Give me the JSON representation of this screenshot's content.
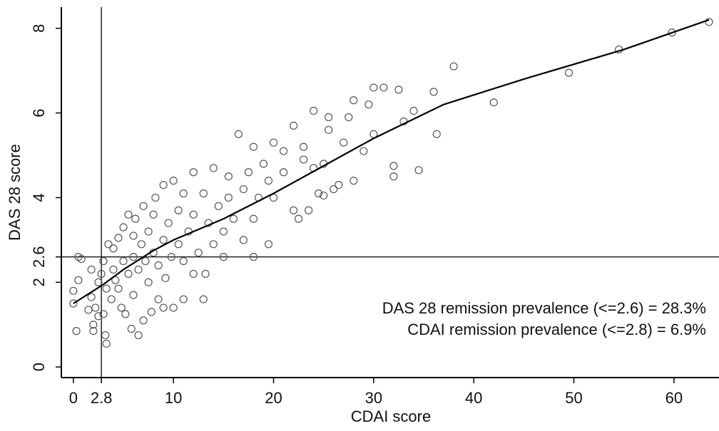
{
  "chart_data": {
    "type": "scatter",
    "x_label": "CDAI score",
    "y_label": "DAS 28 score",
    "annotations": [
      "DAS 28 remission prevalence (<=2.6) = 28.3%",
      "CDAI remission prevalence (<=2.8) = 6.9%"
    ],
    "x": [
      0,
      0,
      0.3,
      0.5,
      0.5,
      0.8,
      1.5,
      1.8,
      1.8,
      2,
      2,
      2.2,
      2.5,
      2.5,
      2.8,
      3,
      3,
      3.2,
      3.3,
      3.3,
      3.5,
      3.8,
      4,
      4,
      4.2,
      4.5,
      4.5,
      4.8,
      5,
      5,
      5.2,
      5.5,
      5.5,
      5.8,
      6,
      6,
      6,
      6.2,
      6.5,
      6.5,
      6.8,
      7,
      7,
      7.2,
      7.5,
      7.5,
      7.8,
      8,
      8,
      8.2,
      8.5,
      8.5,
      9,
      9,
      9,
      9.2,
      9.5,
      9.8,
      10,
      10,
      10.5,
      10.5,
      11,
      11,
      11,
      11.5,
      12,
      12,
      12,
      12.5,
      13,
      13,
      13.2,
      13.5,
      14,
      14,
      14.5,
      15,
      15,
      15.5,
      15.5,
      16,
      16.5,
      17,
      17,
      17.5,
      18,
      18,
      18,
      18.5,
      19,
      19.5,
      19.5,
      20,
      20,
      21,
      21,
      22,
      22,
      22.5,
      23,
      23,
      23.5,
      24,
      24,
      24.5,
      25,
      25,
      25.5,
      25.5,
      26,
      26.5,
      27,
      27.5,
      28,
      28,
      29,
      29.5,
      30,
      30,
      31,
      32,
      32,
      32.5,
      33,
      34,
      34.5,
      36,
      36.3,
      38,
      42,
      49.5,
      54.5,
      59.8,
      63.5
    ],
    "y": [
      1.5,
      1.8,
      0.85,
      2.05,
      2.6,
      2.55,
      1.35,
      1.65,
      2.3,
      0.85,
      1.0,
      1.4,
      1.2,
      2.0,
      2.2,
      1.25,
      2.5,
      0.75,
      0.55,
      1.85,
      2.9,
      1.6,
      2.3,
      2.8,
      2.05,
      1.85,
      3.05,
      1.4,
      2.5,
      3.3,
      1.25,
      2.2,
      3.6,
      0.9,
      1.7,
      2.6,
      3.1,
      3.5,
      0.75,
      2.3,
      2.9,
      1.1,
      3.8,
      2.5,
      2.0,
      3.2,
      1.3,
      2.7,
      3.6,
      4.0,
      1.6,
      2.4,
      1.4,
      3.0,
      4.3,
      2.1,
      3.4,
      2.6,
      4.4,
      1.4,
      2.9,
      3.7,
      1.6,
      2.5,
      4.1,
      3.2,
      2.2,
      4.6,
      3.6,
      2.7,
      1.6,
      4.1,
      2.2,
      3.4,
      4.7,
      2.9,
      3.8,
      3.2,
      2.6,
      4.5,
      4.0,
      3.5,
      5.5,
      4.2,
      3.0,
      4.6,
      5.2,
      3.5,
      2.6,
      4.0,
      4.8,
      2.9,
      4.4,
      5.3,
      4.0,
      5.1,
      4.6,
      3.7,
      5.7,
      3.5,
      4.9,
      5.2,
      3.7,
      6.05,
      4.7,
      4.1,
      4.8,
      4.05,
      5.9,
      5.6,
      4.2,
      4.3,
      5.3,
      5.9,
      6.3,
      4.4,
      5.1,
      6.2,
      5.5,
      6.6,
      6.6,
      4.5,
      4.75,
      6.55,
      5.8,
      6.05,
      4.65,
      6.5,
      5.5,
      7.1,
      6.25,
      6.95,
      7.5,
      7.9,
      8.15
    ],
    "fit": {
      "x": [
        0,
        3,
        5,
        8,
        10,
        15,
        20,
        25,
        30,
        37,
        45,
        55,
        63.5
      ],
      "y": [
        1.5,
        1.95,
        2.3,
        2.75,
        3.0,
        3.5,
        4.1,
        4.75,
        5.4,
        6.2,
        6.8,
        7.5,
        8.2
      ]
    },
    "reference_lines": {
      "x": 2.8,
      "y": 2.6
    },
    "xlim": [
      -1.2,
      64.5
    ],
    "ylim": [
      -0.25,
      8.5
    ],
    "xticks": [
      0,
      2.8,
      10,
      20,
      30,
      40,
      50,
      60
    ],
    "yticks": [
      0,
      2,
      2.6,
      4,
      6,
      8
    ],
    "point_color": "#555555",
    "line_color": "#000000"
  }
}
